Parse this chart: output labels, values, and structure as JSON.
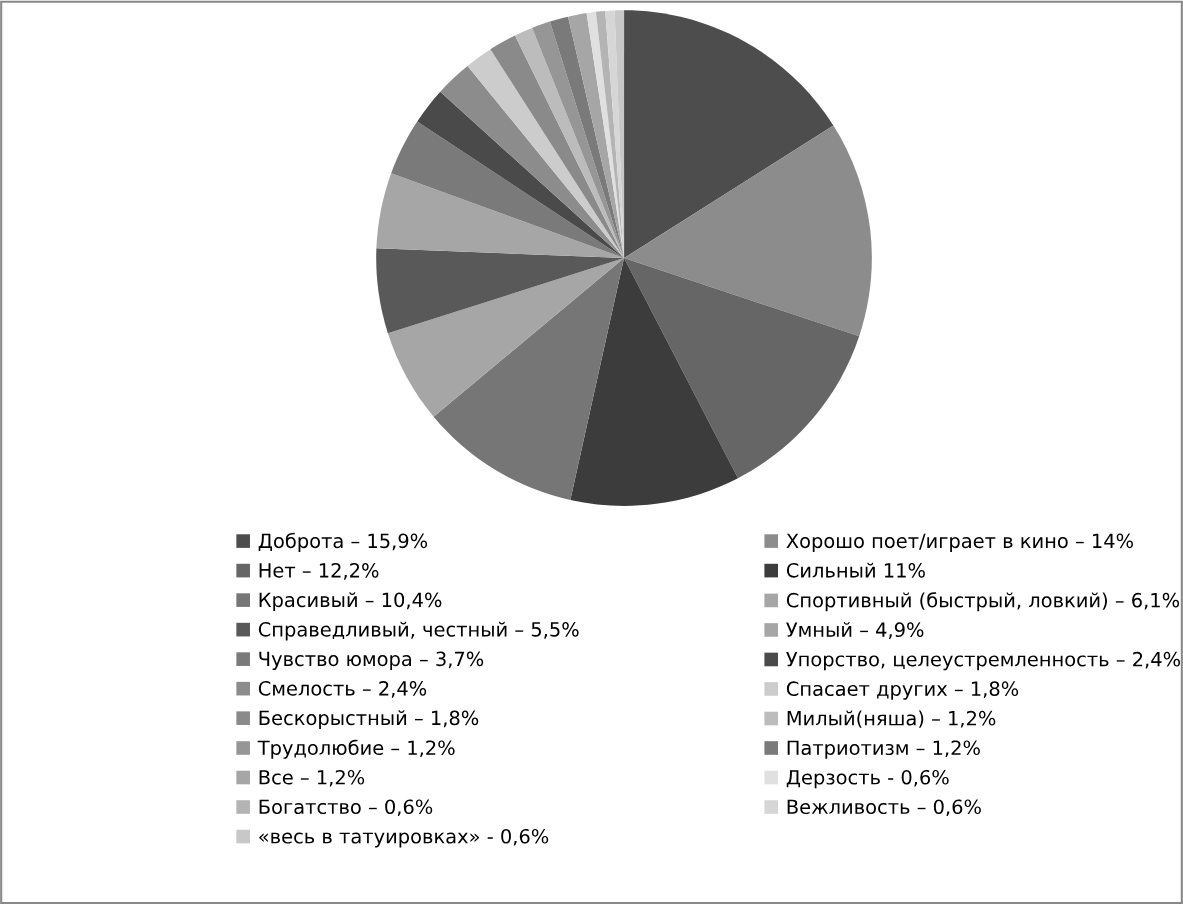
{
  "chart_data": {
    "type": "pie",
    "categories": [
      "Доброта – 15,9%",
      "Хорошо поет/играет в кино – 14%",
      "Нет – 12,2%",
      "Сильный 11%",
      "Красивый – 10,4%",
      "Спортивный (быстрый, ловкий) – 6,1%",
      "Справедливый, честный – 5,5%",
      "Умный – 4,9%",
      "Чувство юмора – 3,7%",
      "Упорство, целеустремленность – 2,4%",
      "Смелость – 2,4%",
      "Спасает других – 1,8%",
      "Бескорыстный – 1,8%",
      "Милый(няша) – 1,2%",
      "Трудолюбие – 1,2%",
      "Патриотизм – 1,2%",
      "Все – 1,2%",
      "Дерзость - 0,6%",
      "Богатство – 0,6%",
      "Вежливость – 0,6%",
      "«весь в татуировках» - 0,6%"
    ],
    "values": [
      15.9,
      14,
      12.2,
      11,
      10.4,
      6.1,
      5.5,
      4.9,
      3.7,
      2.4,
      2.4,
      1.8,
      1.8,
      1.2,
      1.2,
      1.2,
      1.2,
      0.6,
      0.6,
      0.6,
      0.6
    ],
    "colors": [
      "#4d4d4d",
      "#8c8c8c",
      "#666666",
      "#3c3c3c",
      "#767676",
      "#a6a6a6",
      "#595959",
      "#a6a6a6",
      "#7a7a7a",
      "#4a4a4a",
      "#8c8c8c",
      "#cccccc",
      "#8a8a8a",
      "#bcbcbc",
      "#969696",
      "#7a7a7a",
      "#a6a6a6",
      "#e0e0e0",
      "#b4b4b4",
      "#d6d6d6",
      "#c8c8c8"
    ],
    "legend": "bottom"
  }
}
